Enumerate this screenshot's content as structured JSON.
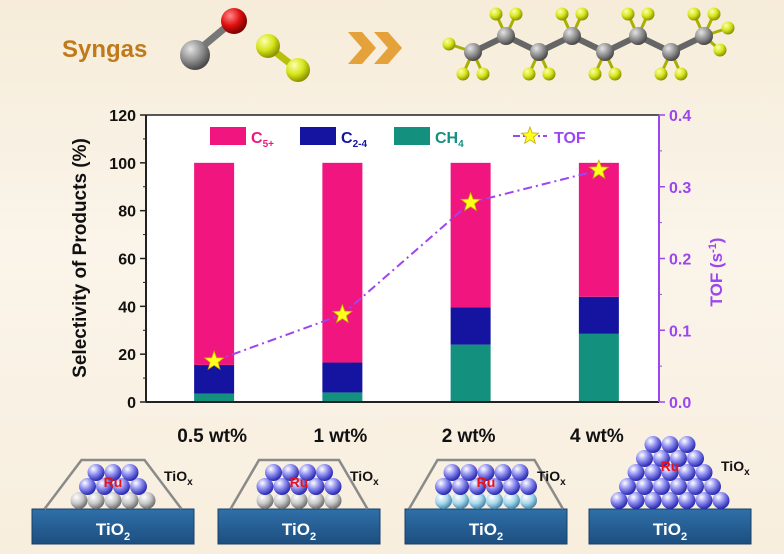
{
  "header": {
    "label": "Syngas"
  },
  "chart_data": {
    "type": "bar",
    "categories": [
      "0.5 wt%",
      "1 wt%",
      "2 wt%",
      "4 wt%"
    ],
    "series": [
      {
        "name": "CH4",
        "values": [
          3.5,
          4,
          24,
          28.5
        ]
      },
      {
        "name": "C2-4",
        "values": [
          12,
          12.5,
          15.5,
          15.5
        ]
      },
      {
        "name": "C5+",
        "values": [
          84.5,
          83.5,
          60.5,
          56
        ]
      }
    ],
    "line_series": {
      "name": "TOF",
      "axis": "right",
      "values": [
        0.057,
        0.122,
        0.278,
        0.323
      ]
    },
    "ylabel": "Selectivity of Products (%)",
    "y2label": "TOF (s-1)",
    "ylim": [
      0,
      120
    ],
    "y2lim": [
      0,
      0.4
    ],
    "yticks": [
      "0",
      "20",
      "40",
      "60",
      "80",
      "100",
      "120"
    ],
    "y2ticks": [
      "0.0",
      "0.1",
      "0.2",
      "0.3",
      "0.4"
    ],
    "legend_position": "top",
    "colors": {
      "C5+": "#f0157f",
      "C2-4": "#1414a0",
      "CH4": "#14907e",
      "TOF": "#9b46f0",
      "TOF_marker": "#ffff1e"
    }
  },
  "legend": {
    "c5_main": "C",
    "c5_sub": "5+",
    "c24_main": "C",
    "c24_sub": "2-4",
    "ch4_main": "CH",
    "ch4_sub": "4",
    "tof": "TOF"
  },
  "y2_label": {
    "main": "TOF (s",
    "sup": "-1",
    "close": ")"
  },
  "schematics": [
    {
      "metal": "Ru",
      "overlayer": "TiO",
      "overlayer_sub": "x",
      "support": "TiO",
      "support_sub": "2"
    },
    {
      "metal": "Ru",
      "overlayer": "TiO",
      "overlayer_sub": "x",
      "support": "TiO",
      "support_sub": "2"
    },
    {
      "metal": "Ru",
      "overlayer": "TiO",
      "overlayer_sub": "x",
      "support": "TiO",
      "support_sub": "2"
    },
    {
      "metal": "Ru",
      "overlayer": "TiO",
      "overlayer_sub": "x",
      "support": "TiO",
      "support_sub": "2"
    }
  ]
}
